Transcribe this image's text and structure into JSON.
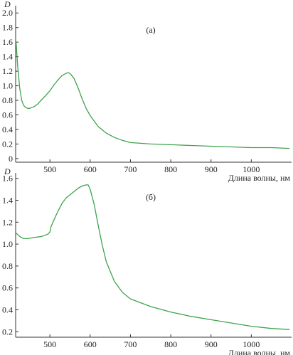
{
  "chart_data": [
    {
      "type": "line",
      "panel_label": "(а)",
      "ylabel": "D",
      "xlabel": "Длина волны, нм",
      "xlim": [
        415,
        1100
      ],
      "ylim": [
        -0.05,
        2.1
      ],
      "x_ticks": [
        500,
        600,
        700,
        800,
        900,
        1000
      ],
      "y_ticks": [
        0,
        0.2,
        0.4,
        0.6,
        0.8,
        1.0,
        1.2,
        1.4,
        1.6,
        1.8,
        2.0
      ],
      "y_tick_labels": [
        "0",
        "0.2",
        "0.4",
        "0.6",
        "0.8",
        "1.0",
        "1.2",
        "1.4",
        "1.6",
        "1.8",
        "2.0"
      ],
      "grid": false,
      "line_color": "#3fa34d",
      "series": [
        {
          "x": [
            416,
            420,
            425,
            430,
            435,
            440,
            445,
            450,
            460,
            470,
            480,
            490,
            500,
            510,
            520,
            530,
            540,
            545,
            550,
            560,
            570,
            580,
            590,
            600,
            620,
            640,
            660,
            680,
            700,
            750,
            800,
            850,
            900,
            950,
            1000,
            1050,
            1095
          ],
          "y": [
            1.6,
            1.28,
            0.97,
            0.8,
            0.73,
            0.7,
            0.69,
            0.69,
            0.71,
            0.75,
            0.81,
            0.87,
            0.93,
            1.01,
            1.08,
            1.14,
            1.17,
            1.18,
            1.17,
            1.1,
            0.97,
            0.82,
            0.69,
            0.59,
            0.44,
            0.35,
            0.29,
            0.25,
            0.22,
            0.2,
            0.19,
            0.18,
            0.17,
            0.16,
            0.15,
            0.15,
            0.14
          ]
        }
      ]
    },
    {
      "type": "line",
      "panel_label": "(б)",
      "ylabel": "D",
      "xlabel": "Длина волны, нм",
      "xlim": [
        415,
        1100
      ],
      "ylim": [
        0.15,
        1.65
      ],
      "x_ticks": [
        500,
        600,
        700,
        800,
        900,
        1000
      ],
      "y_ticks": [
        0.2,
        0.4,
        0.6,
        0.8,
        1.0,
        1.2,
        1.4,
        1.6
      ],
      "y_tick_labels": [
        "0.2",
        "0.4",
        "0.6",
        "0.8",
        "1.0",
        "1.2",
        "1.4",
        "1.6"
      ],
      "grid": false,
      "line_color": "#3fa34d",
      "series": [
        {
          "x": [
            416,
            425,
            435,
            445,
            460,
            480,
            495,
            500,
            503,
            510,
            520,
            530,
            540,
            550,
            560,
            570,
            580,
            590,
            595,
            600,
            610,
            620,
            630,
            640,
            660,
            680,
            700,
            750,
            800,
            850,
            900,
            950,
            1000,
            1050,
            1095
          ],
          "y": [
            1.1,
            1.07,
            1.05,
            1.05,
            1.06,
            1.07,
            1.09,
            1.11,
            1.16,
            1.22,
            1.3,
            1.37,
            1.42,
            1.45,
            1.48,
            1.51,
            1.53,
            1.54,
            1.54,
            1.5,
            1.36,
            1.17,
            0.99,
            0.84,
            0.66,
            0.56,
            0.5,
            0.43,
            0.38,
            0.34,
            0.31,
            0.28,
            0.25,
            0.23,
            0.22
          ]
        }
      ]
    }
  ]
}
